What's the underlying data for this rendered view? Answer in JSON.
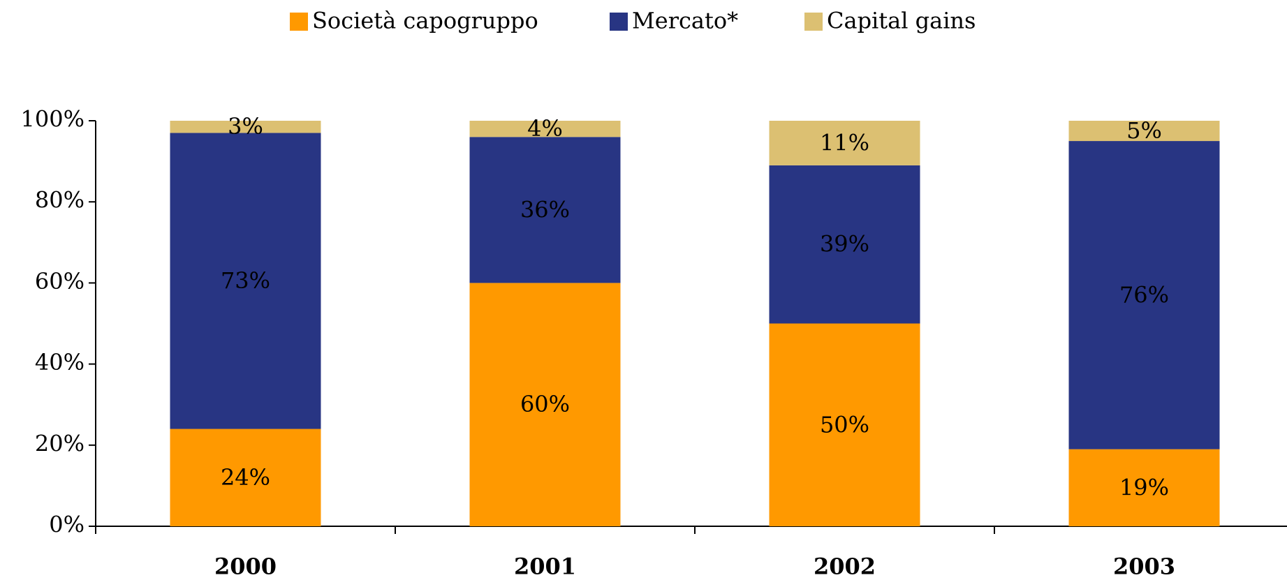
{
  "chart_data": {
    "type": "stacked_bar",
    "categories": [
      "2000",
      "2001",
      "2002",
      "2003"
    ],
    "series": [
      {
        "name": "Società capogruppo",
        "color": "#ff9900",
        "label_color": "#000000",
        "values": [
          24,
          60,
          50,
          19
        ],
        "value_labels": [
          "24%",
          "60%",
          "50%",
          "19%"
        ]
      },
      {
        "name": "Mercato*",
        "color": "#283583",
        "label_color": "#ffffff",
        "values": [
          73,
          36,
          39,
          76
        ],
        "value_labels": [
          "73%",
          "36%",
          "39%",
          "76%"
        ]
      },
      {
        "name": "Capital gains",
        "color": "#dcc072",
        "label_color": "#000000",
        "values": [
          3,
          4,
          11,
          5
        ],
        "value_labels": [
          "3%",
          "4%",
          "11%",
          "5%"
        ]
      }
    ],
    "ylim": [
      0,
      100
    ],
    "yticks": [
      {
        "value": 0,
        "label": "0%"
      },
      {
        "value": 20,
        "label": "20%"
      },
      {
        "value": 40,
        "label": "40%"
      },
      {
        "value": 60,
        "label": "60%"
      },
      {
        "value": 80,
        "label": "80%"
      },
      {
        "value": 100,
        "label": "100%"
      }
    ],
    "legend": "top",
    "grid": false
  }
}
